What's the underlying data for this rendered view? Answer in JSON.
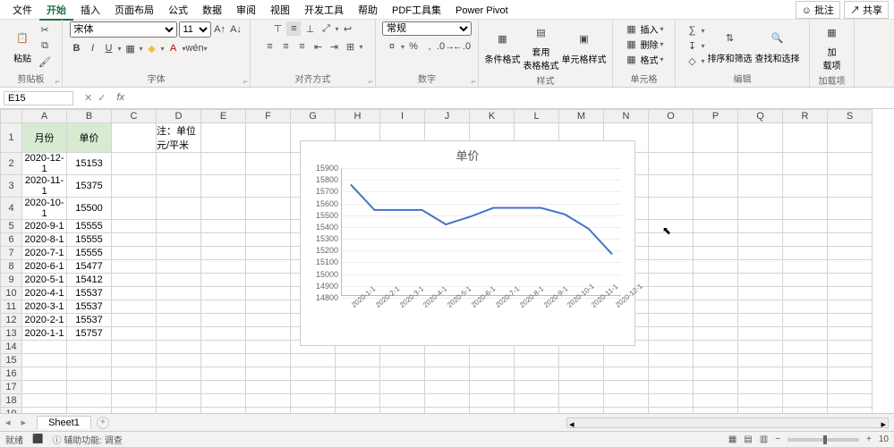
{
  "menu": {
    "tabs": [
      "文件",
      "开始",
      "插入",
      "页面布局",
      "公式",
      "数据",
      "审阅",
      "视图",
      "开发工具",
      "帮助",
      "PDF工具集",
      "Power Pivot"
    ],
    "active": 1,
    "comments": "批注",
    "share": "共享"
  },
  "ribbon": {
    "clipboard": {
      "label": "剪贴板",
      "paste": "粘贴"
    },
    "font": {
      "label": "字体",
      "name": "宋体",
      "size": "11"
    },
    "align": {
      "label": "对齐方式"
    },
    "number": {
      "label": "数字",
      "format": "常规"
    },
    "styles": {
      "label": "样式",
      "cond": "条件格式",
      "table": "套用\n表格格式",
      "cell": "单元格样式"
    },
    "cells": {
      "label": "单元格",
      "insert": "插入",
      "delete": "删除",
      "format": "格式"
    },
    "editing": {
      "label": "编辑",
      "sort": "排序和筛选",
      "find": "查找和选择"
    },
    "addins": {
      "label": "加载项",
      "btn": "加\n载项"
    }
  },
  "namebox": "E15",
  "headers": {
    "A": "月份",
    "B": "单价",
    "note": "注：单位 元/平米"
  },
  "chart": {
    "title": "单价",
    "type": "line",
    "ymin": 14800,
    "ymax": 15900,
    "ystep": 100,
    "categories": [
      "2020-1-1",
      "2020-2-1",
      "2020-3-1",
      "2020-4-1",
      "2020-5-1",
      "2020-6-1",
      "2020-7-1",
      "2020-8-1",
      "2020-9-1",
      "2020-10-1",
      "2020-11-1",
      "2020-12-1"
    ],
    "values": [
      15757,
      15537,
      15537,
      15537,
      15412,
      15477,
      15555,
      15555,
      15555,
      15500,
      15375,
      15153
    ],
    "line_color": "#4472c4",
    "line_width": 2,
    "background": "#ffffff",
    "grid_color": "#eeeeee",
    "axis_color": "#bbbbbb",
    "title_fontsize": 13,
    "label_fontsize": 9
  },
  "rows": [
    {
      "m": "2020-12-1",
      "p": "15153"
    },
    {
      "m": "2020-11-1",
      "p": "15375"
    },
    {
      "m": "2020-10-1",
      "p": "15500"
    },
    {
      "m": "2020-9-1",
      "p": "15555"
    },
    {
      "m": "2020-8-1",
      "p": "15555"
    },
    {
      "m": "2020-7-1",
      "p": "15555"
    },
    {
      "m": "2020-6-1",
      "p": "15477"
    },
    {
      "m": "2020-5-1",
      "p": "15412"
    },
    {
      "m": "2020-4-1",
      "p": "15537"
    },
    {
      "m": "2020-3-1",
      "p": "15537"
    },
    {
      "m": "2020-2-1",
      "p": "15537"
    },
    {
      "m": "2020-1-1",
      "p": "15757"
    }
  ],
  "sheetname": "Sheet1",
  "status": {
    "ready": "就绪",
    "acc": "辅助功能: 调查",
    "zoom": "10"
  }
}
